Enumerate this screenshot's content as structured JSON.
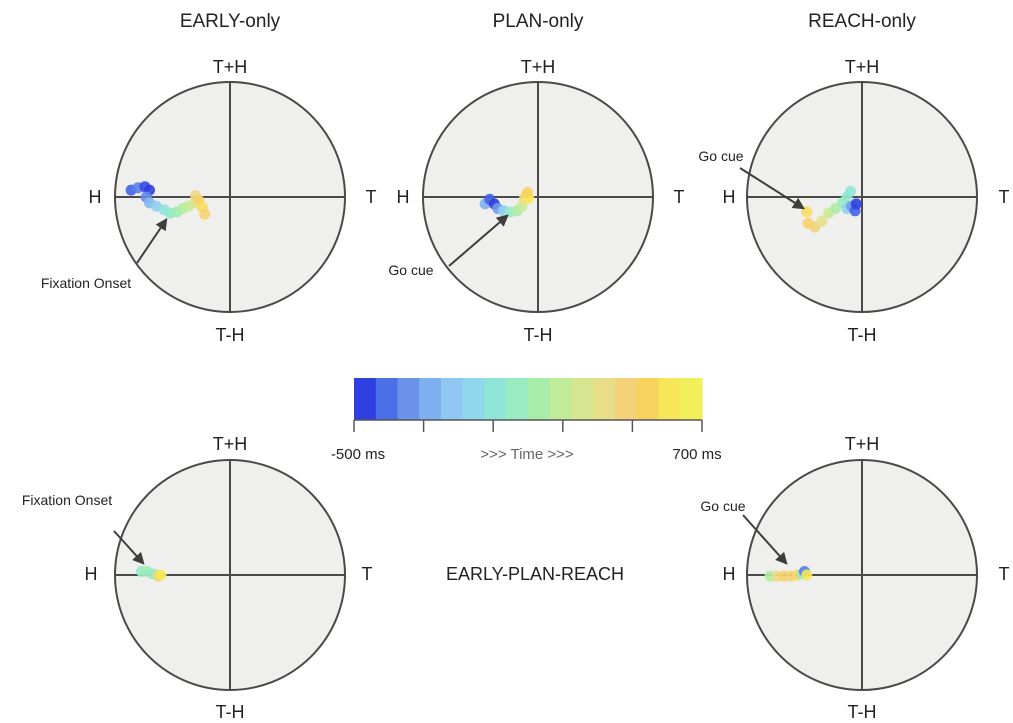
{
  "panels": [
    {
      "id": "early-only",
      "title": "EARLY-only",
      "axis_labels": {
        "top": "T+H",
        "bottom": "T-H",
        "left": "H",
        "right": "T"
      },
      "annotation": "Fixation Onset",
      "trajectory": [
        {
          "x": -0.86,
          "y": 0.06,
          "t": 0.05
        },
        {
          "x": -0.8,
          "y": 0.08,
          "t": 0.1
        },
        {
          "x": -0.74,
          "y": 0.09,
          "t": 0.02
        },
        {
          "x": -0.7,
          "y": 0.06,
          "t": 0.0
        },
        {
          "x": -0.73,
          "y": 0.0,
          "t": 0.12
        },
        {
          "x": -0.7,
          "y": -0.05,
          "t": 0.22
        },
        {
          "x": -0.64,
          "y": -0.08,
          "t": 0.3
        },
        {
          "x": -0.57,
          "y": -0.11,
          "t": 0.38
        },
        {
          "x": -0.52,
          "y": -0.14,
          "t": 0.44
        },
        {
          "x": -0.46,
          "y": -0.13,
          "t": 0.5
        },
        {
          "x": -0.41,
          "y": -0.1,
          "t": 0.56
        },
        {
          "x": -0.36,
          "y": -0.08,
          "t": 0.62
        },
        {
          "x": -0.3,
          "y": -0.05,
          "t": 0.68
        },
        {
          "x": -0.3,
          "y": 0.01,
          "t": 0.76
        },
        {
          "x": -0.27,
          "y": -0.03,
          "t": 0.84
        },
        {
          "x": -0.24,
          "y": -0.09,
          "t": 0.9
        },
        {
          "x": -0.22,
          "y": -0.15,
          "t": 0.82
        }
      ]
    },
    {
      "id": "plan-only",
      "title": "PLAN-only",
      "axis_labels": {
        "top": "T+H",
        "bottom": "T-H",
        "left": "H",
        "right": "T"
      },
      "annotation": "Go cue",
      "trajectory": [
        {
          "x": -0.46,
          "y": -0.06,
          "t": 0.2
        },
        {
          "x": -0.42,
          "y": -0.02,
          "t": 0.05
        },
        {
          "x": -0.38,
          "y": -0.06,
          "t": 0.0
        },
        {
          "x": -0.35,
          "y": -0.1,
          "t": 0.15
        },
        {
          "x": -0.3,
          "y": -0.12,
          "t": 0.3
        },
        {
          "x": -0.24,
          "y": -0.13,
          "t": 0.45
        },
        {
          "x": -0.18,
          "y": -0.12,
          "t": 0.55
        },
        {
          "x": -0.14,
          "y": -0.08,
          "t": 0.62
        },
        {
          "x": -0.12,
          "y": -0.02,
          "t": 0.75
        },
        {
          "x": -0.1,
          "y": 0.02,
          "t": 0.9
        },
        {
          "x": -0.08,
          "y": -0.01,
          "t": 0.95
        },
        {
          "x": -0.09,
          "y": 0.04,
          "t": 0.85
        }
      ]
    },
    {
      "id": "reach-only",
      "title": "REACH-only",
      "axis_labels": {
        "top": "T+H",
        "bottom": "T-H",
        "left": "H",
        "right": "T"
      },
      "annotation": "Go cue",
      "trajectory": [
        {
          "x": -0.48,
          "y": -0.13,
          "t": 0.9
        },
        {
          "x": -0.47,
          "y": -0.23,
          "t": 0.85
        },
        {
          "x": -0.41,
          "y": -0.26,
          "t": 0.8
        },
        {
          "x": -0.35,
          "y": -0.21,
          "t": 0.72
        },
        {
          "x": -0.29,
          "y": -0.14,
          "t": 0.62
        },
        {
          "x": -0.23,
          "y": -0.1,
          "t": 0.55
        },
        {
          "x": -0.17,
          "y": -0.05,
          "t": 0.48
        },
        {
          "x": -0.13,
          "y": 0.0,
          "t": 0.42
        },
        {
          "x": -0.1,
          "y": 0.05,
          "t": 0.4
        },
        {
          "x": -0.13,
          "y": -0.1,
          "t": 0.3
        },
        {
          "x": -0.09,
          "y": -0.08,
          "t": 0.15
        },
        {
          "x": -0.06,
          "y": -0.12,
          "t": 0.05
        },
        {
          "x": -0.05,
          "y": -0.06,
          "t": 0.0
        }
      ]
    },
    {
      "id": "early-plan-reach-left",
      "title": "",
      "axis_labels": {
        "top": "T+H",
        "bottom": "T-H",
        "left": "H",
        "right": "T"
      },
      "annotation": "Fixation Onset",
      "trajectory": [
        {
          "x": -0.77,
          "y": 0.03,
          "t": 0.45
        },
        {
          "x": -0.72,
          "y": 0.03,
          "t": 0.5
        },
        {
          "x": -0.67,
          "y": 0.01,
          "t": 0.42
        },
        {
          "x": -0.63,
          "y": 0.0,
          "t": 0.6
        },
        {
          "x": -0.62,
          "y": -0.01,
          "t": 0.8
        },
        {
          "x": -0.6,
          "y": 0.0,
          "t": 0.95
        }
      ]
    },
    {
      "id": "early-plan-reach-right",
      "title": "",
      "axis_labels": {
        "top": "T+H",
        "bottom": "T-H",
        "left": "H",
        "right": "T"
      },
      "annotation": "Go cue",
      "trajectory": [
        {
          "x": -0.8,
          "y": -0.01,
          "t": 0.55
        },
        {
          "x": -0.74,
          "y": -0.01,
          "t": 0.75
        },
        {
          "x": -0.68,
          "y": -0.01,
          "t": 0.85
        },
        {
          "x": -0.62,
          "y": -0.01,
          "t": 0.8
        },
        {
          "x": -0.56,
          "y": 0.0,
          "t": 0.9
        },
        {
          "x": -0.52,
          "y": 0.01,
          "t": 0.4
        },
        {
          "x": -0.5,
          "y": 0.03,
          "t": 0.1
        },
        {
          "x": -0.48,
          "y": 0.0,
          "t": 0.95
        }
      ]
    }
  ],
  "center_label": "EARLY-PLAN-REACH",
  "colorbar": {
    "min_label": "-500 ms",
    "max_label": "700 ms",
    "mid_label": ">>> Time >>>",
    "colors": [
      "#2f3fe0",
      "#4b6fe6",
      "#6a92ea",
      "#7fb0ef",
      "#8fc6f2",
      "#8fd8ee",
      "#8fe6d8",
      "#98ecc0",
      "#a8ecaa",
      "#c0eb9a",
      "#d6e690",
      "#e8de88",
      "#f3d27a",
      "#f8d25e",
      "#f7e65a",
      "#f2f05a"
    ]
  },
  "colors": {
    "circle_fill": "#efefee",
    "circle_stroke": "#4a4a4a",
    "arrow": "#3e3e3e"
  }
}
